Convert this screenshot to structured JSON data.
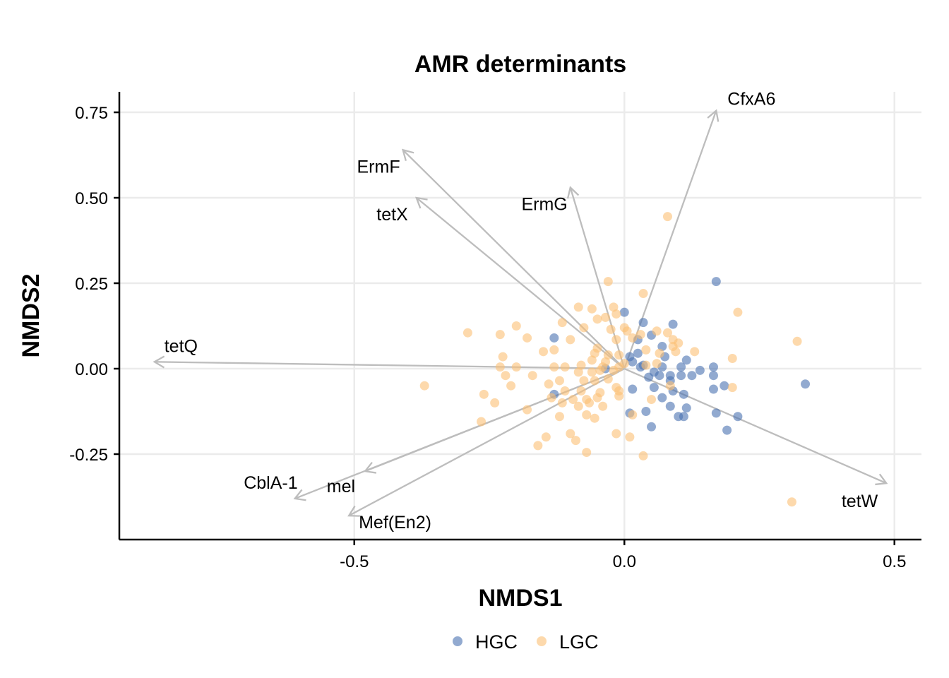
{
  "chart_data": {
    "type": "scatter",
    "title": "AMR determinants",
    "xlabel": "NMDS1",
    "ylabel": "NMDS2",
    "xlim": [
      -0.935,
      0.55
    ],
    "ylim": [
      -0.5,
      0.81
    ],
    "xticks": [
      -0.5,
      0.0,
      0.5
    ],
    "xtick_labels": [
      "-0.5",
      "0.0",
      "0.5"
    ],
    "yticks": [
      -0.25,
      0.0,
      0.25,
      0.5,
      0.75
    ],
    "ytick_labels": [
      "-0.25",
      "0.00",
      "0.25",
      "0.50",
      "0.75"
    ],
    "grid": true,
    "legend_position": "bottom",
    "colors": {
      "HGC": "#4a72b0",
      "LGC": "#fbbf74",
      "vector": "#bdbdbd"
    },
    "series": [
      {
        "name": "HGC",
        "points": [
          [
            0.17,
            0.255
          ],
          [
            0.335,
            -0.045
          ],
          [
            0.0,
            0.165
          ],
          [
            0.09,
            0.13
          ],
          [
            0.035,
            0.135
          ],
          [
            0.05,
            0.098
          ],
          [
            0.07,
            0.065
          ],
          [
            0.025,
            0.085
          ],
          [
            -0.13,
            0.09
          ],
          [
            0.025,
            0.045
          ],
          [
            0.075,
            0.035
          ],
          [
            0.115,
            0.025
          ],
          [
            0.01,
            0.035
          ],
          [
            0.015,
            0.02
          ],
          [
            0.035,
            0.01
          ],
          [
            0.03,
            0.005
          ],
          [
            -0.035,
            0.0
          ],
          [
            0.07,
            0.005
          ],
          [
            0.105,
            0.005
          ],
          [
            0.14,
            -0.005
          ],
          [
            0.165,
            0.005
          ],
          [
            0.055,
            -0.01
          ],
          [
            0.065,
            -0.02
          ],
          [
            0.085,
            -0.02
          ],
          [
            0.105,
            -0.02
          ],
          [
            0.125,
            -0.02
          ],
          [
            0.165,
            -0.02
          ],
          [
            0.045,
            -0.025
          ],
          [
            0.085,
            -0.035
          ],
          [
            0.015,
            -0.06
          ],
          [
            0.055,
            -0.055
          ],
          [
            0.09,
            -0.065
          ],
          [
            0.11,
            -0.075
          ],
          [
            0.165,
            -0.06
          ],
          [
            0.185,
            -0.05
          ],
          [
            0.07,
            -0.085
          ],
          [
            0.085,
            -0.11
          ],
          [
            0.115,
            -0.115
          ],
          [
            0.01,
            -0.13
          ],
          [
            0.04,
            -0.125
          ],
          [
            0.1,
            -0.14
          ],
          [
            0.11,
            -0.14
          ],
          [
            0.17,
            -0.13
          ],
          [
            0.21,
            -0.14
          ],
          [
            0.19,
            -0.18
          ],
          [
            0.05,
            -0.17
          ],
          [
            -0.13,
            -0.075
          ]
        ]
      },
      {
        "name": "LGC",
        "points": [
          [
            0.08,
            0.445
          ],
          [
            0.32,
            0.08
          ],
          [
            0.31,
            -0.39
          ],
          [
            0.21,
            0.165
          ],
          [
            -0.03,
            0.255
          ],
          [
            0.035,
            0.22
          ],
          [
            -0.085,
            0.18
          ],
          [
            -0.06,
            0.175
          ],
          [
            -0.02,
            0.18
          ],
          [
            -0.035,
            0.15
          ],
          [
            -0.05,
            0.145
          ],
          [
            -0.015,
            0.16
          ],
          [
            -0.115,
            0.135
          ],
          [
            -0.29,
            0.105
          ],
          [
            -0.23,
            0.1
          ],
          [
            -0.2,
            0.125
          ],
          [
            -0.18,
            0.09
          ],
          [
            -0.1,
            0.085
          ],
          [
            -0.075,
            0.12
          ],
          [
            -0.025,
            0.115
          ],
          [
            0.0,
            0.12
          ],
          [
            0.005,
            0.11
          ],
          [
            0.03,
            0.1
          ],
          [
            0.06,
            0.11
          ],
          [
            0.08,
            0.105
          ],
          [
            -0.015,
            0.085
          ],
          [
            0.015,
            0.09
          ],
          [
            0.09,
            0.085
          ],
          [
            0.1,
            0.075
          ],
          [
            0.09,
            0.065
          ],
          [
            -0.13,
            0.055
          ],
          [
            -0.15,
            0.05
          ],
          [
            -0.05,
            0.06
          ],
          [
            -0.03,
            0.04
          ],
          [
            -0.01,
            0.04
          ],
          [
            0.04,
            0.055
          ],
          [
            0.065,
            0.045
          ],
          [
            0.095,
            0.05
          ],
          [
            0.13,
            0.05
          ],
          [
            -0.055,
            0.045
          ],
          [
            0.2,
            0.03
          ],
          [
            -0.06,
            0.025
          ],
          [
            0.06,
            0.015
          ],
          [
            -0.225,
            0.035
          ],
          [
            -0.23,
            0.005
          ],
          [
            -0.2,
            0.005
          ],
          [
            -0.13,
            0.005
          ],
          [
            -0.11,
            0.005
          ],
          [
            -0.08,
            0.01
          ],
          [
            -0.035,
            0.02
          ],
          [
            -0.04,
            0.005
          ],
          [
            -0.01,
            0.005
          ],
          [
            0.0,
            0.015
          ],
          [
            0.04,
            0.01
          ],
          [
            -0.085,
            -0.01
          ],
          [
            -0.06,
            -0.01
          ],
          [
            -0.045,
            -0.005
          ],
          [
            -0.02,
            -0.005
          ],
          [
            -0.22,
            -0.02
          ],
          [
            -0.17,
            -0.02
          ],
          [
            -0.14,
            -0.045
          ],
          [
            -0.21,
            -0.05
          ],
          [
            -0.37,
            -0.05
          ],
          [
            -0.12,
            -0.035
          ],
          [
            -0.075,
            -0.035
          ],
          [
            -0.055,
            -0.035
          ],
          [
            -0.03,
            -0.03
          ],
          [
            -0.015,
            -0.055
          ],
          [
            -0.01,
            -0.065
          ],
          [
            -0.08,
            -0.065
          ],
          [
            -0.11,
            -0.065
          ],
          [
            -0.045,
            -0.07
          ],
          [
            0.085,
            -0.05
          ],
          [
            0.2,
            -0.055
          ],
          [
            -0.26,
            -0.075
          ],
          [
            -0.24,
            -0.1
          ],
          [
            -0.135,
            -0.085
          ],
          [
            -0.095,
            -0.09
          ],
          [
            -0.07,
            -0.09
          ],
          [
            -0.05,
            -0.085
          ],
          [
            -0.065,
            -0.1
          ],
          [
            -0.01,
            -0.08
          ],
          [
            -0.115,
            -0.1
          ],
          [
            -0.085,
            -0.11
          ],
          [
            -0.04,
            -0.11
          ],
          [
            0.05,
            -0.09
          ],
          [
            -0.18,
            -0.12
          ],
          [
            -0.12,
            -0.14
          ],
          [
            -0.07,
            -0.135
          ],
          [
            -0.055,
            -0.145
          ],
          [
            0.015,
            -0.135
          ],
          [
            -0.265,
            -0.155
          ],
          [
            -0.1,
            -0.19
          ],
          [
            -0.145,
            -0.2
          ],
          [
            -0.09,
            -0.21
          ],
          [
            -0.015,
            -0.19
          ],
          [
            0.01,
            -0.2
          ],
          [
            -0.16,
            -0.225
          ],
          [
            -0.07,
            -0.245
          ],
          [
            0.035,
            -0.255
          ]
        ]
      }
    ],
    "vectors": [
      {
        "label": "CfxA6",
        "x": 0.17,
        "y": 0.755
      },
      {
        "label": "ErmF",
        "x": -0.41,
        "y": 0.64
      },
      {
        "label": "tetX",
        "x": -0.385,
        "y": 0.5
      },
      {
        "label": "ErmG",
        "x": -0.1,
        "y": 0.53
      },
      {
        "label": "tetQ",
        "x": -0.87,
        "y": 0.02
      },
      {
        "label": "tetW",
        "x": 0.485,
        "y": -0.335
      },
      {
        "label": "CblA-1",
        "x": -0.61,
        "y": -0.38
      },
      {
        "label": "mel",
        "x": -0.48,
        "y": -0.3
      },
      {
        "label": "Mef(En2)",
        "x": -0.51,
        "y": -0.43
      }
    ]
  }
}
